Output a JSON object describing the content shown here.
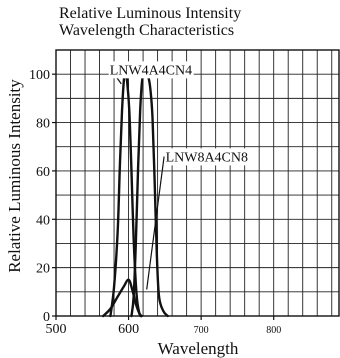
{
  "chart_data": {
    "type": "line",
    "title_line1": "Relative Luminous Intensity",
    "title_line2": "Wavelength Characteristics",
    "xlabel": "Wavelength",
    "ylabel": "Relative Luminous Intensity",
    "xlim": [
      500,
      890
    ],
    "ylim": [
      0,
      110
    ],
    "x_ticks": [
      {
        "value": 500,
        "label": "500",
        "size": "large"
      },
      {
        "value": 600,
        "label": "600",
        "size": "large"
      },
      {
        "value": 700,
        "label": "700",
        "size": "small"
      },
      {
        "value": 800,
        "label": "800",
        "size": "small"
      }
    ],
    "y_ticks": [
      {
        "value": 0,
        "label": "0"
      },
      {
        "value": 20,
        "label": "20"
      },
      {
        "value": 40,
        "label": "40"
      },
      {
        "value": 60,
        "label": "60"
      },
      {
        "value": 80,
        "label": "80"
      },
      {
        "value": 100,
        "label": "100"
      }
    ],
    "grid": true,
    "series": [
      {
        "name": "LNW4A4CN4",
        "points": [
          [
            565,
            0
          ],
          [
            575,
            3
          ],
          [
            585,
            8
          ],
          [
            593,
            12
          ],
          [
            600,
            15
          ],
          [
            605,
            11
          ],
          [
            610,
            5
          ],
          [
            615,
            1
          ],
          [
            618,
            0
          ]
        ]
      },
      {
        "name": "LNW4A4CN4",
        "points": [
          [
            575,
            0
          ],
          [
            580,
            12
          ],
          [
            585,
            35
          ],
          [
            588,
            62
          ],
          [
            591,
            85
          ],
          [
            594,
            99
          ],
          [
            596,
            100
          ],
          [
            598,
            97
          ],
          [
            601,
            85
          ],
          [
            604,
            60
          ],
          [
            607,
            32
          ],
          [
            611,
            9
          ],
          [
            615,
            1
          ],
          [
            618,
            0
          ]
        ]
      },
      {
        "name": "LNW8A4CN8",
        "points": [
          [
            604,
            0
          ],
          [
            607,
            8
          ],
          [
            610,
            30
          ],
          [
            613,
            60
          ],
          [
            616,
            85
          ],
          [
            619,
            98
          ],
          [
            623,
            100
          ],
          [
            627,
            99
          ],
          [
            630,
            94
          ],
          [
            633,
            82
          ],
          [
            636,
            55
          ],
          [
            639,
            25
          ],
          [
            642,
            8
          ],
          [
            648,
            2
          ],
          [
            654,
            0
          ]
        ]
      }
    ],
    "annotations": [
      {
        "text": "LNW4A4CN4",
        "x": 574,
        "y": 102,
        "anchor": "start",
        "leader_from": [
          590,
          96
        ],
        "leader_to": [
          578,
          101
        ]
      },
      {
        "text": "LNW8A4CN8",
        "x": 651,
        "y": 66,
        "anchor": "start",
        "leader_from": [
          625,
          11
        ],
        "leader_to": [
          649,
          66
        ]
      }
    ]
  }
}
